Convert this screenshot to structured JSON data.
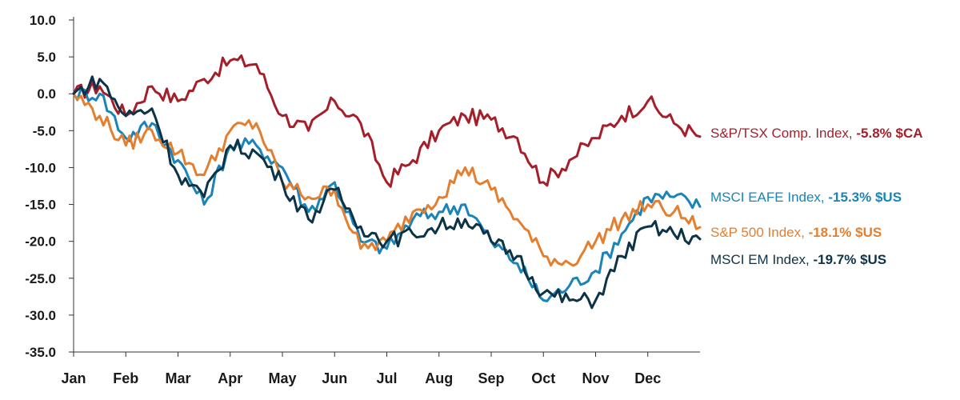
{
  "chart_data": {
    "type": "line",
    "ylim": [
      -35,
      10
    ],
    "yticks": [
      "10.0",
      "5.0",
      "0.0",
      "-5.0",
      "-10.0",
      "-15.0",
      "-20.0",
      "-25.0",
      "-30.0",
      "-35.0"
    ],
    "ytick_values": [
      10,
      5,
      0,
      -5,
      -10,
      -15,
      -20,
      -25,
      -30,
      -35
    ],
    "xticks": [
      "Jan",
      "Feb",
      "Mar",
      "Apr",
      "May",
      "Jun",
      "Jul",
      "Aug",
      "Sep",
      "Oct",
      "Nov",
      "Dec"
    ],
    "x_points": [
      "Jan",
      "Jan-mid",
      "Feb",
      "Feb-mid",
      "Mar",
      "Mar-mid",
      "Apr",
      "Apr-mid",
      "May",
      "May-mid",
      "Jun",
      "Jun-mid",
      "Jul",
      "Jul-mid",
      "Aug",
      "Aug-mid",
      "Sep",
      "Sep-mid",
      "Oct",
      "Oct-mid",
      "Nov",
      "Nov-mid",
      "Dec",
      "Dec-mid",
      "Dec-end"
    ],
    "xlabel": "",
    "ylabel": "",
    "grid": false,
    "series": [
      {
        "name": "S&P/TSX Comp. Index",
        "label_pre": "S&P/TSX Comp. Index, ",
        "label_bold": "-5.8% $CA",
        "color": "#a51f2a",
        "values": [
          0,
          1,
          -3,
          1,
          -1,
          2,
          4.5,
          4,
          -3,
          -5,
          -1,
          -4,
          -12,
          -9,
          -5,
          -3,
          -3.5,
          -6,
          -12,
          -9,
          -6,
          -3,
          -1,
          -4,
          -5.8
        ]
      },
      {
        "name": "MSCI EAFE Index",
        "label_pre": "MSCI EAFE Index, ",
        "label_bold": "-15.3% $US",
        "color": "#1a84b8",
        "values": [
          0,
          0,
          -6,
          -4,
          -9,
          -15,
          -7,
          -7,
          -10,
          -16,
          -12,
          -20,
          -21,
          -17,
          -16,
          -15,
          -20,
          -23,
          -28,
          -26,
          -24,
          -19,
          -14,
          -14,
          -15.3
        ]
      },
      {
        "name": "S&P 500 Index",
        "label_pre": "S&P 500 Index, ",
        "label_bold": "-18.1% $US",
        "color": "#e37f2f",
        "values": [
          0,
          -3,
          -7,
          -5,
          -8,
          -11,
          -5,
          -4,
          -12,
          -14,
          -13,
          -21,
          -20,
          -16,
          -14,
          -10,
          -13,
          -17,
          -22,
          -23,
          -20,
          -17,
          -15,
          -16,
          -18.1
        ]
      },
      {
        "name": "MSCI EM Index",
        "label_pre": "MSCI EM Index, ",
        "label_bold": "-19.7% $US",
        "color": "#0d3347",
        "values": [
          0,
          2,
          -3,
          -2,
          -11,
          -14,
          -7,
          -8,
          -12,
          -17,
          -13,
          -18,
          -20,
          -19,
          -18,
          -17,
          -20,
          -22,
          -27,
          -28,
          -28,
          -22,
          -18,
          -19,
          -19.7
        ]
      }
    ]
  }
}
